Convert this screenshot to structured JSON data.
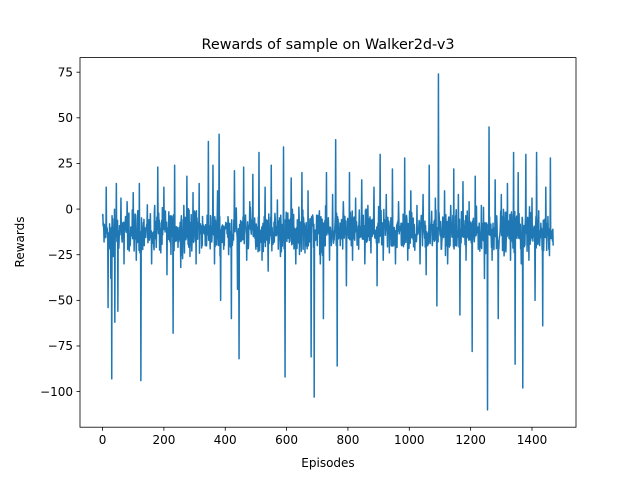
{
  "chart_data": {
    "type": "line",
    "title": "Rewards of sample on Walker2d-v3",
    "xlabel": "Episodes",
    "ylabel": "Rewards",
    "xlim": [
      -73.5,
      1543.5
    ],
    "ylim": [
      -119.5,
      83.0
    ],
    "xticks": [
      0,
      200,
      400,
      600,
      800,
      1000,
      1200,
      1400
    ],
    "xtick_labels": [
      "0",
      "200",
      "400",
      "600",
      "800",
      "1000",
      "1200",
      "1400"
    ],
    "yticks": [
      -100,
      -75,
      -50,
      -25,
      0,
      25,
      50,
      75
    ],
    "ytick_labels": [
      "−100",
      "−75",
      "−50",
      "−25",
      "0",
      "25",
      "50",
      "75"
    ],
    "grid": false,
    "legend": "none",
    "series": [
      {
        "color": "#1f77b4",
        "n_points": 1470,
        "baseline": -12,
        "noise_amplitude": 16,
        "peaks": [
          [
            0,
            -4
          ],
          [
            5,
            -18
          ],
          [
            12,
            12
          ],
          [
            18,
            -54
          ],
          [
            22,
            -20
          ],
          [
            27,
            -38
          ],
          [
            30,
            -93
          ],
          [
            35,
            -26
          ],
          [
            40,
            -62
          ],
          [
            45,
            14
          ],
          [
            50,
            -56
          ],
          [
            60,
            6
          ],
          [
            70,
            -30
          ],
          [
            80,
            4
          ],
          [
            90,
            -20
          ],
          [
            100,
            9
          ],
          [
            110,
            -28
          ],
          [
            120,
            14
          ],
          [
            125,
            -94
          ],
          [
            130,
            -20
          ],
          [
            140,
            -12
          ],
          [
            150,
            -6
          ],
          [
            160,
            -30
          ],
          [
            170,
            2
          ],
          [
            180,
            23
          ],
          [
            190,
            -24
          ],
          [
            200,
            12
          ],
          [
            210,
            -36
          ],
          [
            220,
            -18
          ],
          [
            230,
            -68
          ],
          [
            235,
            24
          ],
          [
            245,
            -10
          ],
          [
            255,
            -32
          ],
          [
            265,
            2
          ],
          [
            275,
            18
          ],
          [
            285,
            -26
          ],
          [
            295,
            9
          ],
          [
            305,
            -30
          ],
          [
            315,
            14
          ],
          [
            325,
            -20
          ],
          [
            335,
            -20
          ],
          [
            345,
            37
          ],
          [
            350,
            -18
          ],
          [
            360,
            24
          ],
          [
            365,
            -30
          ],
          [
            375,
            10
          ],
          [
            380,
            41
          ],
          [
            385,
            -50
          ],
          [
            395,
            -22
          ],
          [
            405,
            -8
          ],
          [
            420,
            -60
          ],
          [
            430,
            21
          ],
          [
            440,
            -44
          ],
          [
            445,
            -82
          ],
          [
            460,
            23
          ],
          [
            470,
            -28
          ],
          [
            480,
            4
          ],
          [
            490,
            19
          ],
          [
            500,
            -22
          ],
          [
            510,
            31
          ],
          [
            520,
            -28
          ],
          [
            530,
            12
          ],
          [
            540,
            -34
          ],
          [
            550,
            24
          ],
          [
            560,
            -18
          ],
          [
            570,
            5
          ],
          [
            580,
            -26
          ],
          [
            590,
            34
          ],
          [
            595,
            -92
          ],
          [
            605,
            -16
          ],
          [
            615,
            17
          ],
          [
            630,
            -30
          ],
          [
            640,
            1
          ],
          [
            650,
            20
          ],
          [
            660,
            -24
          ],
          [
            670,
            10
          ],
          [
            680,
            -81
          ],
          [
            690,
            -103
          ],
          [
            700,
            -20
          ],
          [
            710,
            -30
          ],
          [
            720,
            -60
          ],
          [
            730,
            20
          ],
          [
            740,
            -28
          ],
          [
            750,
            8
          ],
          [
            760,
            38
          ],
          [
            765,
            -86
          ],
          [
            775,
            -20
          ],
          [
            785,
            4
          ],
          [
            795,
            -42
          ],
          [
            805,
            20
          ],
          [
            815,
            -28
          ],
          [
            825,
            6
          ],
          [
            835,
            -22
          ],
          [
            845,
            16
          ],
          [
            855,
            -30
          ],
          [
            865,
            2
          ],
          [
            875,
            -24
          ],
          [
            885,
            12
          ],
          [
            895,
            -42
          ],
          [
            905,
            30
          ],
          [
            915,
            -28
          ],
          [
            925,
            8
          ],
          [
            935,
            -24
          ],
          [
            945,
            22
          ],
          [
            955,
            -30
          ],
          [
            965,
            4
          ],
          [
            975,
            -20
          ],
          [
            985,
            28
          ],
          [
            995,
            -28
          ],
          [
            1005,
            10
          ],
          [
            1015,
            -18
          ],
          [
            1025,
            2
          ],
          [
            1035,
            -30
          ],
          [
            1045,
            8
          ],
          [
            1055,
            -36
          ],
          [
            1065,
            24
          ],
          [
            1075,
            -20
          ],
          [
            1085,
            6
          ],
          [
            1090,
            -53
          ],
          [
            1095,
            74
          ],
          [
            1105,
            -22
          ],
          [
            1115,
            10
          ],
          [
            1125,
            -30
          ],
          [
            1135,
            2
          ],
          [
            1145,
            22
          ],
          [
            1150,
            -20
          ],
          [
            1160,
            8
          ],
          [
            1165,
            -58
          ],
          [
            1175,
            15
          ],
          [
            1185,
            -28
          ],
          [
            1195,
            4
          ],
          [
            1205,
            -78
          ],
          [
            1215,
            18
          ],
          [
            1225,
            -22
          ],
          [
            1235,
            2
          ],
          [
            1245,
            -38
          ],
          [
            1255,
            -110
          ],
          [
            1260,
            45
          ],
          [
            1270,
            -28
          ],
          [
            1280,
            16
          ],
          [
            1290,
            -60
          ],
          [
            1300,
            8
          ],
          [
            1310,
            -22
          ],
          [
            1320,
            14
          ],
          [
            1330,
            -28
          ],
          [
            1340,
            31
          ],
          [
            1345,
            -85
          ],
          [
            1355,
            20
          ],
          [
            1365,
            -30
          ],
          [
            1370,
            -98
          ],
          [
            1380,
            30
          ],
          [
            1390,
            -28
          ],
          [
            1400,
            6
          ],
          [
            1410,
            -50
          ],
          [
            1415,
            31
          ],
          [
            1425,
            -20
          ],
          [
            1435,
            -64
          ],
          [
            1445,
            12
          ],
          [
            1455,
            -22
          ],
          [
            1460,
            28
          ],
          [
            1469,
            -20
          ]
        ]
      }
    ]
  }
}
